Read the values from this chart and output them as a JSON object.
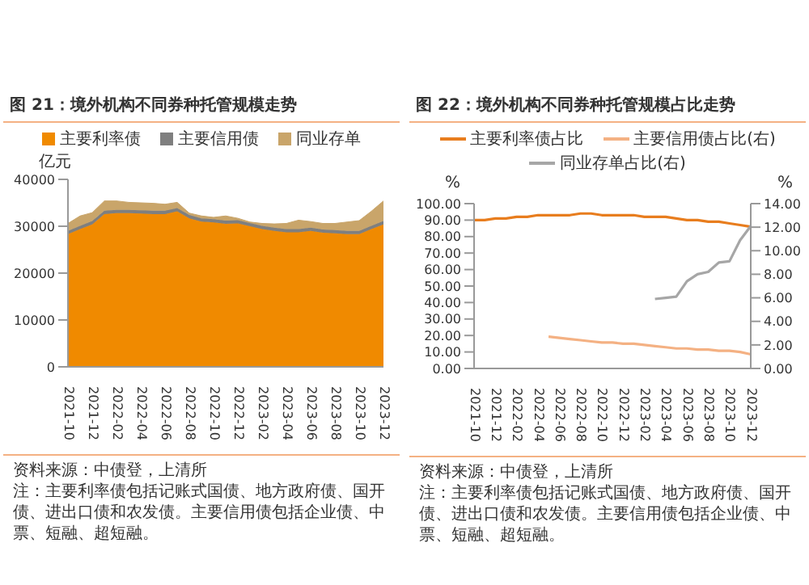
{
  "chart_data": [
    {
      "type": "area",
      "stacked": true,
      "title": "图 21：境外机构不同券种托管规模走势",
      "ylabel": "亿元",
      "legend": "top",
      "categories": [
        "2021-10",
        null,
        "2021-12",
        null,
        "2022-02",
        null,
        "2022-04",
        null,
        "2022-06",
        null,
        "2022-08",
        null,
        "2022-10",
        null,
        "2022-12",
        null,
        "2023-02",
        null,
        "2023-04",
        null,
        "2023-06",
        null,
        "2023-08",
        null,
        "2023-10",
        null,
        "2023-12"
      ],
      "ylim": [
        0,
        40000
      ],
      "yticks": [
        0,
        10000,
        20000,
        30000,
        40000
      ],
      "series": [
        {
          "name": "主要利率债",
          "color": "#f08a00",
          "values": [
            28300,
            29400,
            30400,
            32600,
            32800,
            32800,
            32700,
            32600,
            32600,
            33200,
            31700,
            31000,
            30800,
            30500,
            30600,
            30000,
            29400,
            29000,
            28700,
            28700,
            29000,
            28600,
            28500,
            28300,
            28300,
            29400,
            30400
          ]
        },
        {
          "name": "主要信用债",
          "color": "#7f7f7f",
          "values": [
            700,
            700,
            700,
            700,
            700,
            700,
            700,
            700,
            700,
            700,
            700,
            700,
            700,
            700,
            700,
            700,
            700,
            700,
            700,
            700,
            700,
            700,
            700,
            700,
            700,
            700,
            700
          ]
        },
        {
          "name": "同业存单",
          "color": "#c9a56a",
          "values": [
            1600,
            2100,
            1800,
            2100,
            1900,
            1600,
            1600,
            1600,
            1400,
            1200,
            400,
            500,
            400,
            1000,
            400,
            200,
            500,
            800,
            1200,
            1900,
            1300,
            1300,
            1400,
            1900,
            2200,
            3100,
            4300
          ]
        }
      ],
      "annotations": [
        "资料来源：中债登，上清所",
        "注：主要利率债包括记账式国债、地方政府债、国开债、进出口债和农发债。主要信用债包括企业债、中票、短融、超短融。"
      ]
    },
    {
      "type": "line",
      "title": "图 22：境外机构不同券种托管规模占比走势",
      "ylabel": "%",
      "y2label": "%",
      "legend": "top",
      "categories": [
        "2021-10",
        null,
        "2021-12",
        null,
        "2022-02",
        null,
        "2022-04",
        null,
        "2022-06",
        null,
        "2022-08",
        null,
        "2022-10",
        null,
        "2022-12",
        null,
        "2023-02",
        null,
        "2023-04",
        null,
        "2023-06",
        null,
        "2023-08",
        null,
        "2023-10",
        null,
        "2023-12"
      ],
      "ylim": [
        0,
        100
      ],
      "yticks": [
        {
          "value": 0,
          "label": "0.00"
        },
        {
          "value": 10,
          "label": "10.00"
        },
        {
          "value": 20,
          "label": "20.00"
        },
        {
          "value": 30,
          "label": "30.00"
        },
        {
          "value": 40,
          "label": "40.00"
        },
        {
          "value": 50,
          "label": "50.00"
        },
        {
          "value": 60,
          "label": "60.00"
        },
        {
          "value": 70,
          "label": "70.00"
        },
        {
          "value": 80,
          "label": "80.00"
        },
        {
          "value": 90,
          "label": "90.00"
        },
        {
          "value": 100,
          "label": "100.00"
        }
      ],
      "y2lim": [
        0,
        14
      ],
      "y2ticks": [
        {
          "value": 0,
          "label": "0.00"
        },
        {
          "value": 2,
          "label": "2.00"
        },
        {
          "value": 4,
          "label": "4.00"
        },
        {
          "value": 6,
          "label": "6.00"
        },
        {
          "value": 8,
          "label": "8.00"
        },
        {
          "value": 10,
          "label": "10.00"
        },
        {
          "value": 12,
          "label": "12.00"
        },
        {
          "value": 14,
          "label": "14.00"
        }
      ],
      "series": [
        {
          "name": "主要利率债占比",
          "color": "#e87d1e",
          "values": [
            90,
            90,
            91,
            91,
            92,
            92,
            93,
            93,
            93,
            93,
            94,
            94,
            93,
            93,
            93,
            93,
            92,
            92,
            92,
            91,
            90,
            90,
            89,
            89,
            88,
            87,
            86
          ]
        },
        {
          "name": "主要信用债占比(右)",
          "color": "#f4b183",
          "axis": "y2",
          "values": [
            null,
            null,
            null,
            null,
            null,
            null,
            null,
            2.7,
            2.6,
            2.5,
            2.4,
            2.3,
            2.2,
            2.2,
            2.1,
            2.1,
            2.0,
            1.9,
            1.8,
            1.7,
            1.7,
            1.6,
            1.6,
            1.5,
            1.5,
            1.4,
            1.2
          ]
        },
        {
          "name": "同业存单占比(右)",
          "color": "#a6a6a6",
          "axis": "y2",
          "values": [
            null,
            null,
            null,
            null,
            null,
            null,
            null,
            null,
            null,
            null,
            null,
            null,
            null,
            null,
            null,
            null,
            null,
            5.9,
            6.0,
            6.1,
            7.4,
            8.0,
            8.2,
            9.0,
            9.1,
            10.9,
            12.1
          ]
        }
      ],
      "annotations": [
        "资料来源：中债登，上清所",
        "注：主要利率债包括记账式国债、地方政府债、国开债、进出口债和农发债。主要信用债包括企业债、中票、短融、超短融。"
      ]
    }
  ]
}
